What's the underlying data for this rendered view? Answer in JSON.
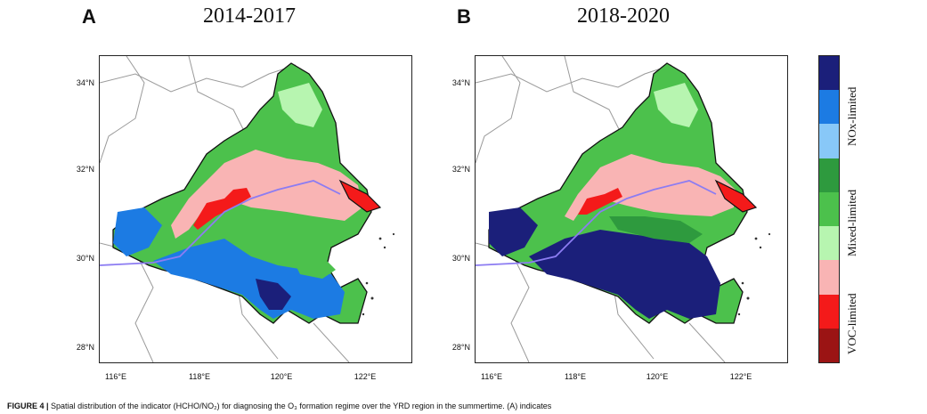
{
  "panels": [
    {
      "letter": "A",
      "title": "2014-2017"
    },
    {
      "letter": "B",
      "title": "2018-2020"
    }
  ],
  "map_axes": {
    "lat_ticks": [
      "34°N",
      "32°N",
      "30°N",
      "28°N"
    ],
    "lon_ticks": [
      "116°E",
      "118°E",
      "120°E",
      "122°E"
    ]
  },
  "colorbar": {
    "colors": [
      "#1b1f7a",
      "#1c7be3",
      "#88c8f8",
      "#2e9a3e",
      "#4cc14c",
      "#b7f5b0",
      "#f9b4b4",
      "#f41a1a",
      "#9b1414"
    ],
    "labels": {
      "nox": "NOx-limited",
      "mixed": "Mixed-limited",
      "voc": "VOC-limited"
    }
  },
  "caption": {
    "bold": "FIGURE 4 |",
    "text": "Spatial distribution of the indicator (HCHO/NO₂) for diagnosing the O₃ formation regime over the YRD region in the summertime. (A) indicates"
  }
}
